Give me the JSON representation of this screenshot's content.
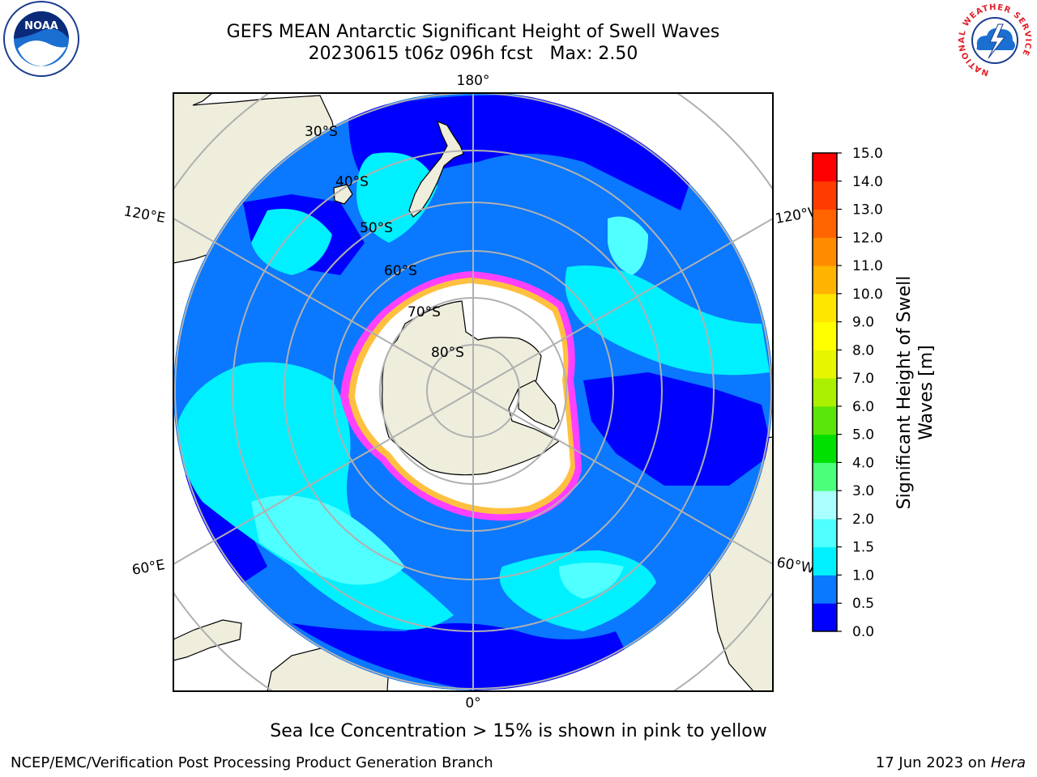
{
  "title": {
    "line1": "GEFS MEAN Antarctic Significant Height of Swell Waves",
    "line2": "20230615 t06z 096h fcst   Max: 2.50"
  },
  "map_labels": {
    "lon_top": "180°",
    "lon_bottom": "0°",
    "lon_left_upper": "120°E",
    "lon_left_lower": "60°E",
    "lon_right_upper": "120°W",
    "lon_right_lower": "60°W",
    "lat_30": "30°S",
    "lat_40": "40°S",
    "lat_50": "50°S",
    "lat_60": "60°S",
    "lat_70": "70°S",
    "lat_80": "80°S"
  },
  "colorbar": {
    "label_line1": "Significant Height of Swell",
    "label_line2": "Waves [m]",
    "ticks": [
      "0.0",
      "0.5",
      "1.0",
      "1.5",
      "2.0",
      "3.0",
      "4.0",
      "5.0",
      "6.0",
      "7.0",
      "8.0",
      "9.0",
      "10.0",
      "11.0",
      "12.0",
      "13.0",
      "14.0",
      "15.0"
    ],
    "colors": [
      "#0000ff",
      "#0a78ff",
      "#00f0ff",
      "#50ffff",
      "#aaffff",
      "#4cff7a",
      "#00e000",
      "#5ae60a",
      "#aaf000",
      "#e6f500",
      "#ffff00",
      "#ffe600",
      "#ffb400",
      "#ff8c00",
      "#ff6400",
      "#ff3c00",
      "#ff0000"
    ]
  },
  "colors": {
    "land": "#efeddc",
    "ocean_low": "#0000ff",
    "ocean_mid": "#0a78ff",
    "ocean_cyan": "#00f0ff",
    "ocean_light": "#50ffff",
    "sea_ice_edge": "#ff40ff",
    "sea_ice_yellow": "#ffc040"
  },
  "footnote": "Sea Ice Concentration > 15% is shown in pink to yellow",
  "credit_left": "NCEP/EMC/Verification Post Processing Product Generation Branch",
  "credit_right_date": "17 Jun 2023 on ",
  "credit_right_host": "Hera",
  "logos": {
    "noaa_text": "NOAA",
    "nws_ring_text": "NATIONAL WEATHER SERVICE"
  }
}
